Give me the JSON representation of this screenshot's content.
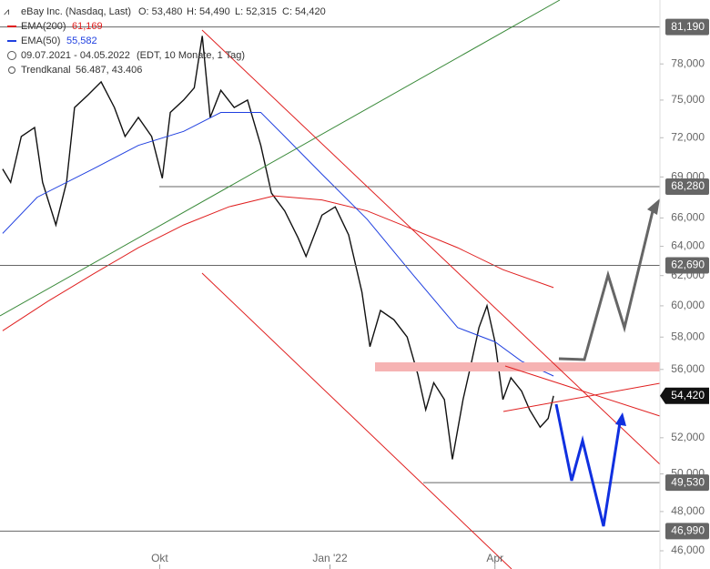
{
  "chart_data": {
    "type": "line",
    "log_scale": true,
    "title": "eBay Inc. (Nasdaq, Last)",
    "ohlc": [
      "O: 53,480",
      "H: 54,490",
      "L: 52,315",
      "C: 54,420"
    ],
    "period": "09.07.2021 - 04.05.2022",
    "period_note": "(EDT, 10 Monate, 1 Tag)",
    "trend_channel": {
      "name": "Trendkanal",
      "label": "56.487, 43.406"
    },
    "xlim": [
      0,
      248
    ],
    "xticks": [
      {
        "value": 60,
        "label": "Okt"
      },
      {
        "value": 124,
        "label": "Jan '22"
      },
      {
        "value": 186,
        "label": "Apr"
      }
    ],
    "ylim": [
      45100,
      83600
    ],
    "yticks": [
      {
        "value": 46000,
        "label": "46,000"
      },
      {
        "value": 48000,
        "label": "48,000"
      },
      {
        "value": 50000,
        "label": "50,000"
      },
      {
        "value": 52000,
        "label": "52,000"
      },
      {
        "value": 56000,
        "label": "56,000"
      },
      {
        "value": 58000,
        "label": "58,000"
      },
      {
        "value": 60000,
        "label": "60,000"
      },
      {
        "value": 62000,
        "label": "62,000"
      },
      {
        "value": 64000,
        "label": "64,000"
      },
      {
        "value": 66000,
        "label": "66,000"
      },
      {
        "value": 69000,
        "label": "69,000"
      },
      {
        "value": 72000,
        "label": "72,000"
      },
      {
        "value": 75000,
        "label": "75,000"
      },
      {
        "value": 78000,
        "label": "78,000"
      }
    ],
    "levels": [
      {
        "value": 81190,
        "label": "81,190"
      },
      {
        "value": 68280,
        "label": "68,280"
      },
      {
        "value": 62690,
        "label": "62,690"
      },
      {
        "value": 49530,
        "label": "49,530"
      },
      {
        "value": 46990,
        "label": "46,990"
      }
    ],
    "level_color": "#666666",
    "last": {
      "value": 54420,
      "label": "54,420"
    },
    "series": [
      {
        "name": "eBay Inc. (Nasdaq, Last)",
        "color": "#111111",
        "x": [
          1,
          4,
          8,
          13,
          16,
          21,
          25,
          28,
          33,
          38,
          43,
          47,
          52,
          57,
          61,
          64,
          69,
          73,
          76,
          79,
          83,
          88,
          93,
          98,
          102,
          107,
          112,
          115,
          121,
          126,
          131,
          136,
          139,
          143,
          148,
          153,
          157,
          160,
          163,
          167,
          170,
          174,
          177,
          180,
          183,
          186,
          189,
          192,
          196,
          199,
          203,
          206,
          208
        ],
        "values": [
          69600,
          68600,
          72100,
          72800,
          68600,
          65500,
          68600,
          74400,
          75400,
          76500,
          74400,
          72100,
          73600,
          72100,
          68900,
          74000,
          75000,
          76000,
          80400,
          73600,
          75800,
          74400,
          75000,
          71400,
          67800,
          66500,
          64600,
          63300,
          66200,
          66800,
          64800,
          60900,
          57400,
          59700,
          59100,
          58000,
          55700,
          53600,
          55200,
          54200,
          50800,
          54200,
          56300,
          58600,
          60000,
          57700,
          54200,
          55500,
          54700,
          53600,
          52600,
          53100,
          54420
        ]
      },
      {
        "name": "EMA(200)",
        "legend_value": "61,169",
        "color": "#e02020",
        "x": [
          1,
          18,
          35,
          52,
          69,
          86,
          103,
          121,
          138,
          155,
          172,
          189,
          208
        ],
        "values": [
          58400,
          60300,
          62100,
          63900,
          65500,
          66800,
          67600,
          67300,
          66500,
          65200,
          63900,
          62400,
          61200
        ]
      },
      {
        "name": "EMA(50)",
        "legend_value": "55,582",
        "color": "#2040e0",
        "x": [
          1,
          14,
          35,
          52,
          69,
          83,
          98,
          107,
          121,
          138,
          155,
          172,
          186,
          196,
          208
        ],
        "values": [
          64900,
          67500,
          69600,
          71400,
          72500,
          74000,
          74000,
          72100,
          69200,
          65900,
          62100,
          58600,
          57700,
          56500,
          55600
        ]
      }
    ]
  }
}
